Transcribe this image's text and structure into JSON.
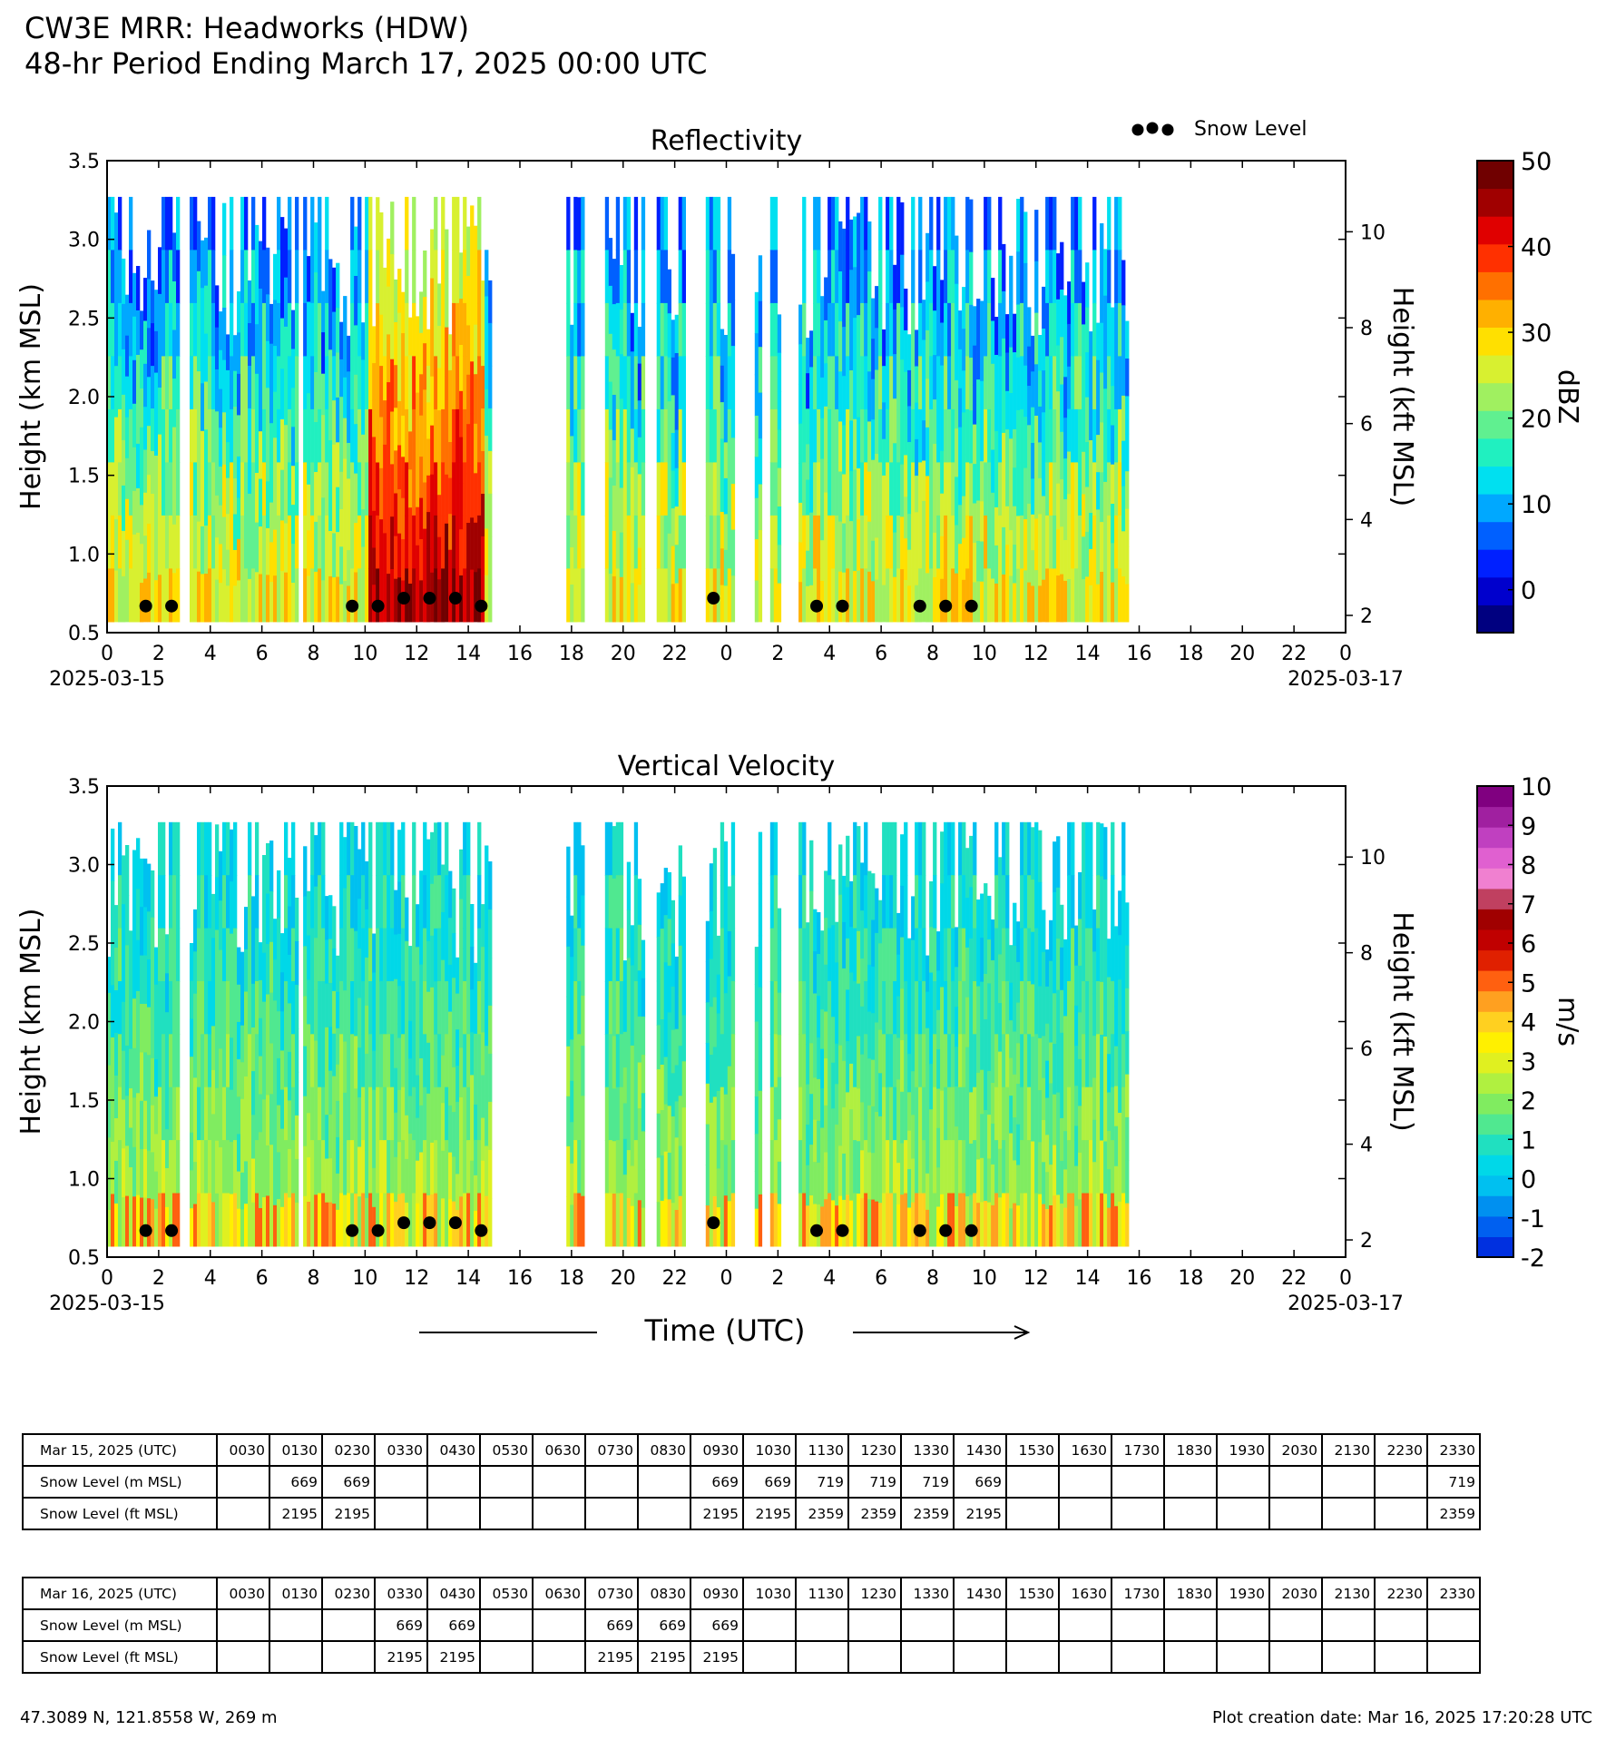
{
  "page": {
    "title_line1": "CW3E MRR: Headworks (HDW)",
    "title_line2": "48-hr Period Ending March 17, 2025 00:00 UTC",
    "location": "47.3089 N, 121.8558 W, 269 m",
    "creation_date": "Plot creation date: Mar 16, 2025 17:20:28 UTC"
  },
  "chart_data": [
    {
      "type": "heatmap",
      "title": "Reflectivity",
      "ylabel": "Height (km MSL)",
      "ylabel_right": "Height (kft MSL)",
      "ylim": [
        0.5,
        3.5
      ],
      "y_ticks": [
        "0.5",
        "1.0",
        "1.5",
        "2.0",
        "2.5",
        "3.0",
        "3.5"
      ],
      "y_right_ticks": [
        "2",
        "4",
        "6",
        "8",
        "10"
      ],
      "x_ticks": [
        "0",
        "2",
        "4",
        "6",
        "8",
        "10",
        "12",
        "14",
        "16",
        "18",
        "20",
        "22",
        "0",
        "2",
        "4",
        "6",
        "8",
        "10",
        "12",
        "14",
        "16",
        "18",
        "20",
        "22",
        "0"
      ],
      "x_start_label": "2025-03-15",
      "x_end_label": "2025-03-17",
      "legend": "Snow Level",
      "colorbar": {
        "label": "dBZ",
        "ticks": [
          "0",
          "10",
          "20",
          "30",
          "40",
          "50"
        ],
        "range": [
          -5,
          50
        ],
        "colors": [
          "#000080",
          "#0000cd",
          "#0020ff",
          "#0060ff",
          "#00a8ff",
          "#00e0f0",
          "#20f0c0",
          "#60f090",
          "#a0f060",
          "#d8f030",
          "#ffe000",
          "#ffb000",
          "#ff7000",
          "#ff3000",
          "#e00000",
          "#a00000",
          "#700000"
        ]
      },
      "echo_periods_hours": [
        [
          0,
          2.8
        ],
        [
          3.2,
          7.4
        ],
        [
          7.6,
          14.9
        ],
        [
          17.8,
          18.4
        ],
        [
          19.3,
          20.8
        ],
        [
          21.3,
          22.4
        ],
        [
          23.2,
          24.2
        ],
        [
          25.1,
          25.3
        ],
        [
          25.7,
          26.1
        ],
        [
          26.8,
          39.6
        ]
      ],
      "high_reflectivity_period_hours": [
        10,
        14.5
      ],
      "snow_level_km": [
        {
          "t": 1.5,
          "v": 0.669
        },
        {
          "t": 2.5,
          "v": 0.669
        },
        {
          "t": 9.5,
          "v": 0.669
        },
        {
          "t": 10.5,
          "v": 0.669
        },
        {
          "t": 11.5,
          "v": 0.719
        },
        {
          "t": 12.5,
          "v": 0.719
        },
        {
          "t": 13.5,
          "v": 0.719
        },
        {
          "t": 14.5,
          "v": 0.669
        },
        {
          "t": 23.5,
          "v": 0.719
        },
        {
          "t": 27.5,
          "v": 0.669
        },
        {
          "t": 28.5,
          "v": 0.669
        },
        {
          "t": 31.5,
          "v": 0.669
        },
        {
          "t": 32.5,
          "v": 0.669
        },
        {
          "t": 33.5,
          "v": 0.669
        }
      ]
    },
    {
      "type": "heatmap",
      "title": "Vertical Velocity",
      "ylabel": "Height (km MSL)",
      "ylabel_right": "Height (kft MSL)",
      "xlabel": "Time (UTC)",
      "ylim": [
        0.5,
        3.5
      ],
      "y_ticks": [
        "0.5",
        "1.0",
        "1.5",
        "2.0",
        "2.5",
        "3.0",
        "3.5"
      ],
      "y_right_ticks": [
        "2",
        "4",
        "6",
        "8",
        "10"
      ],
      "x_ticks": [
        "0",
        "2",
        "4",
        "6",
        "8",
        "10",
        "12",
        "14",
        "16",
        "18",
        "20",
        "22",
        "0",
        "2",
        "4",
        "6",
        "8",
        "10",
        "12",
        "14",
        "16",
        "18",
        "20",
        "22",
        "0"
      ],
      "x_start_label": "2025-03-15",
      "x_end_label": "2025-03-17",
      "colorbar": {
        "label": "m/s",
        "ticks": [
          "-2",
          "-1",
          "0",
          "1",
          "2",
          "3",
          "4",
          "5",
          "6",
          "7",
          "8",
          "9",
          "10"
        ],
        "range": [
          -2,
          10
        ],
        "colors": [
          "#0030e0",
          "#0060f0",
          "#0090f0",
          "#00c0f0",
          "#00d8e8",
          "#20e0c0",
          "#50e890",
          "#80ec60",
          "#b0f040",
          "#e0f020",
          "#fff000",
          "#ffd020",
          "#ffa020",
          "#ff6010",
          "#e02000",
          "#c00000",
          "#a00000",
          "#c04060",
          "#f080d0",
          "#e060d0",
          "#c040c0",
          "#a020a0",
          "#800080"
        ]
      },
      "echo_periods_hours": [
        [
          0,
          2.8
        ],
        [
          3.2,
          7.4
        ],
        [
          7.6,
          14.9
        ],
        [
          17.8,
          18.4
        ],
        [
          19.3,
          20.8
        ],
        [
          21.3,
          22.4
        ],
        [
          23.2,
          24.2
        ],
        [
          25.1,
          25.3
        ],
        [
          25.7,
          26.1
        ],
        [
          26.8,
          39.6
        ]
      ],
      "snow_level_km": [
        {
          "t": 1.5,
          "v": 0.669
        },
        {
          "t": 2.5,
          "v": 0.669
        },
        {
          "t": 9.5,
          "v": 0.669
        },
        {
          "t": 10.5,
          "v": 0.669
        },
        {
          "t": 11.5,
          "v": 0.719
        },
        {
          "t": 12.5,
          "v": 0.719
        },
        {
          "t": 13.5,
          "v": 0.719
        },
        {
          "t": 14.5,
          "v": 0.669
        },
        {
          "t": 23.5,
          "v": 0.719
        },
        {
          "t": 27.5,
          "v": 0.669
        },
        {
          "t": 28.5,
          "v": 0.669
        },
        {
          "t": 31.5,
          "v": 0.669
        },
        {
          "t": 32.5,
          "v": 0.669
        },
        {
          "t": 33.5,
          "v": 0.669
        }
      ]
    },
    {
      "type": "table",
      "columns": [
        "0030",
        "0130",
        "0230",
        "0330",
        "0430",
        "0530",
        "0630",
        "0730",
        "0830",
        "0930",
        "1030",
        "1130",
        "1230",
        "1330",
        "1430",
        "1530",
        "1630",
        "1730",
        "1830",
        "1930",
        "2030",
        "2130",
        "2230",
        "2330"
      ],
      "tables": [
        {
          "date_label": "Mar 15, 2025 (UTC)",
          "rows": [
            {
              "label": "Snow Level (m MSL)",
              "values": [
                "",
                "669",
                "669",
                "",
                "",
                "",
                "",
                "",
                "",
                "669",
                "669",
                "719",
                "719",
                "719",
                "669",
                "",
                "",
                "",
                "",
                "",
                "",
                "",
                "",
                "719"
              ]
            },
            {
              "label": "Snow Level (ft MSL)",
              "values": [
                "",
                "2195",
                "2195",
                "",
                "",
                "",
                "",
                "",
                "",
                "2195",
                "2195",
                "2359",
                "2359",
                "2359",
                "2195",
                "",
                "",
                "",
                "",
                "",
                "",
                "",
                "",
                "2359"
              ]
            }
          ]
        },
        {
          "date_label": "Mar 16, 2025 (UTC)",
          "rows": [
            {
              "label": "Snow Level (m MSL)",
              "values": [
                "",
                "",
                "",
                "669",
                "669",
                "",
                "",
                "669",
                "669",
                "669",
                "",
                "",
                "",
                "",
                "",
                "",
                "",
                "",
                "",
                "",
                "",
                "",
                "",
                ""
              ]
            },
            {
              "label": "Snow Level (ft MSL)",
              "values": [
                "",
                "",
                "",
                "2195",
                "2195",
                "",
                "",
                "2195",
                "2195",
                "2195",
                "",
                "",
                "",
                "",
                "",
                "",
                "",
                "",
                "",
                "",
                "",
                "",
                "",
                ""
              ]
            }
          ]
        }
      ]
    }
  ]
}
